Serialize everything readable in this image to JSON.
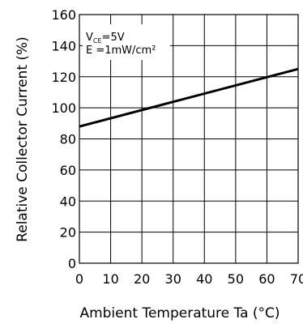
{
  "chart_data": {
    "type": "line",
    "xlabel": "Ambient Temperature Ta (°C)",
    "ylabel": "Relative Collector Current (%)",
    "xlim": [
      0,
      70
    ],
    "ylim": [
      0,
      160
    ],
    "x_ticks": [
      "0",
      "10",
      "20",
      "30",
      "40",
      "50",
      "60",
      "70"
    ],
    "y_ticks": [
      "0",
      "20",
      "40",
      "60",
      "80",
      "100",
      "120",
      "140",
      "160"
    ],
    "grid": true,
    "annotation": {
      "vce_symbol": "V",
      "vce_sub": "CE",
      "vce_value": "=5V",
      "e_text": "E =1mW/cm²"
    },
    "series": [
      {
        "x": [
          0,
          70
        ],
        "y": [
          88,
          125
        ]
      }
    ]
  }
}
